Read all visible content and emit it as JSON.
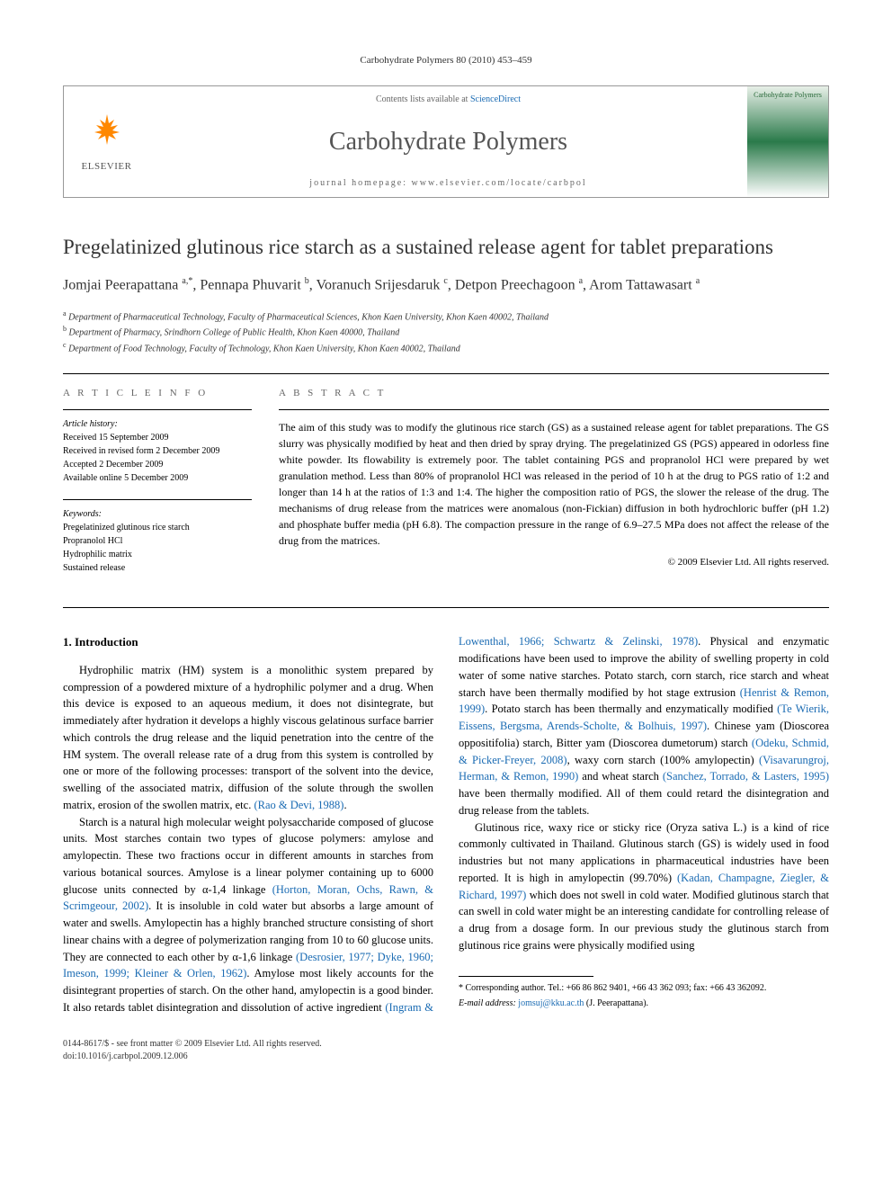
{
  "citation": "Carbohydrate Polymers 80 (2010) 453–459",
  "header": {
    "contents_prefix": "Contents lists available at ",
    "contents_link": "ScienceDirect",
    "journal": "Carbohydrate Polymers",
    "homepage_prefix": "journal homepage: ",
    "homepage_url": "www.elsevier.com/locate/carbpol",
    "publisher": "ELSEVIER",
    "cover_text": "Carbohydrate Polymers"
  },
  "title": "Pregelatinized glutinous rice starch as a sustained release agent for tablet preparations",
  "authors_html": "Jomjai Peerapattana <sup>a,*</sup>, Pennapa Phuvarit <sup>b</sup>, Voranuch Srijesdaruk <sup>c</sup>, Detpon Preechagoon <sup>a</sup>, Arom Tattawasart <sup>a</sup>",
  "affiliations": [
    {
      "sup": "a",
      "text": "Department of Pharmaceutical Technology, Faculty of Pharmaceutical Sciences, Khon Kaen University, Khon Kaen 40002, Thailand"
    },
    {
      "sup": "b",
      "text": "Department of Pharmacy, Srindhorn College of Public Health, Khon Kaen 40000, Thailand"
    },
    {
      "sup": "c",
      "text": "Department of Food Technology, Faculty of Technology, Khon Kaen University, Khon Kaen 40002, Thailand"
    }
  ],
  "article_info": {
    "label": "A R T I C L E   I N F O",
    "history_label": "Article history:",
    "history": [
      "Received 15 September 2009",
      "Received in revised form 2 December 2009",
      "Accepted 2 December 2009",
      "Available online 5 December 2009"
    ],
    "keywords_label": "Keywords:",
    "keywords": [
      "Pregelatinized glutinous rice starch",
      "Propranolol HCl",
      "Hydrophilic matrix",
      "Sustained release"
    ]
  },
  "abstract": {
    "label": "A B S T R A C T",
    "text": "The aim of this study was to modify the glutinous rice starch (GS) as a sustained release agent for tablet preparations. The GS slurry was physically modified by heat and then dried by spray drying. The pregelatinized GS (PGS) appeared in odorless fine white powder. Its flowability is extremely poor. The tablet containing PGS and propranolol HCl were prepared by wet granulation method. Less than 80% of propranolol HCl was released in the period of 10 h at the drug to PGS ratio of 1:2 and longer than 14 h at the ratios of 1:3 and 1:4. The higher the composition ratio of PGS, the slower the release of the drug. The mechanisms of drug release from the matrices were anomalous (non-Fickian) diffusion in both hydrochloric buffer (pH 1.2) and phosphate buffer media (pH 6.8). The compaction pressure in the range of 6.9–27.5 MPa does not affect the release of the drug from the matrices.",
    "copyright": "© 2009 Elsevier Ltd. All rights reserved."
  },
  "body": {
    "heading": "1. Introduction",
    "p1": "Hydrophilic matrix (HM) system is a monolithic system prepared by compression of a powdered mixture of a hydrophilic polymer and a drug. When this device is exposed to an aqueous medium, it does not disintegrate, but immediately after hydration it develops a highly viscous gelatinous surface barrier which controls the drug release and the liquid penetration into the centre of the HM system. The overall release rate of a drug from this system is controlled by one or more of the following processes: transport of the solvent into the device, swelling of the associated matrix, diffusion of the solute through the swollen matrix, erosion of the swollen matrix, etc. ",
    "p1_ref": "(Rao & Devi, 1988)",
    "p1_end": ".",
    "p2a": "Starch is a natural high molecular weight polysaccharide composed of glucose units. Most starches contain two types of glucose polymers: amylose and amylopectin. These two fractions occur in different amounts in starches from various botanical sources. Amylose is a linear polymer containing up to 6000 glucose units connected by α-1,4 linkage ",
    "p2_ref1": "(Horton, Moran, Ochs, Rawn, & Scrimgeour, 2002)",
    "p2b": ". It is insoluble in cold water but absorbs a large amount of water and swells. Amylopectin has a highly branched structure consisting of short linear chains with a degree of polymerization ranging from 10 to 60 glucose units. They are connected to each other by α-1,6 linkage ",
    "p2_ref2": "(Desrosier, 1977; Dyke, 1960; Imeson, 1999; Kleiner & Orlen, 1962)",
    "p2c": ". Amylose most likely accounts for the disintegrant properties of starch. On the other hand, amylopectin is a good binder. It also retards tablet disintegration and dissolution of active ingredient ",
    "p2_ref3": "(Ingram & Lowenthal, 1966; Schwartz & Zelinski, 1978)",
    "p2d": ". Physical and enzymatic modifications have been used to improve the ability of swelling property in cold water of some native starches. Potato starch, corn starch, rice starch and wheat starch have been thermally modified by hot stage extrusion ",
    "p2_ref4": "(Henrist & Remon, 1999)",
    "p2e": ". Potato starch has been thermally and enzymatically modified ",
    "p2_ref5": "(Te Wierik, Eissens, Bergsma, Arends-Scholte, & Bolhuis, 1997)",
    "p2f": ". Chinese yam (Dioscorea oppositifolia) starch, Bitter yam (Dioscorea dumetorum) starch ",
    "p2_ref6": "(Odeku, Schmid, & Picker-Freyer, 2008)",
    "p2g": ", waxy corn starch (100% amylopectin) ",
    "p2_ref7": "(Visavarungroj, Herman, & Remon, 1990)",
    "p2h": " and wheat starch ",
    "p2_ref8": "(Sanchez, Torrado, & Lasters, 1995)",
    "p2i": " have been thermally modified. All of them could retard the disintegration and drug release from the tablets.",
    "p3a": "Glutinous rice, waxy rice or sticky rice (Oryza sativa L.) is a kind of rice commonly cultivated in Thailand. Glutinous starch (GS) is widely used in food industries but not many applications in pharmaceutical industries have been reported. It is high in amylopectin (99.70%) ",
    "p3_ref1": "(Kadan, Champagne, Ziegler, & Richard, 1997)",
    "p3b": " which does not swell in cold water. Modified glutinous starch that can swell in cold water might be an interesting candidate for controlling release of a drug from a dosage form. In our previous study the glutinous starch from glutinous rice grains were physically modified using"
  },
  "footnotes": {
    "corr": "* Corresponding author. Tel.: +66 86 862 9401, +66 43 362 093; fax: +66 43 362092.",
    "email_label": "E-mail address: ",
    "email": "jomsuj@kku.ac.th",
    "email_suffix": " (J. Peerapattana)."
  },
  "bottom": {
    "left1": "0144-8617/$ - see front matter © 2009 Elsevier Ltd. All rights reserved.",
    "left2": "doi:10.1016/j.carbpol.2009.12.006"
  }
}
